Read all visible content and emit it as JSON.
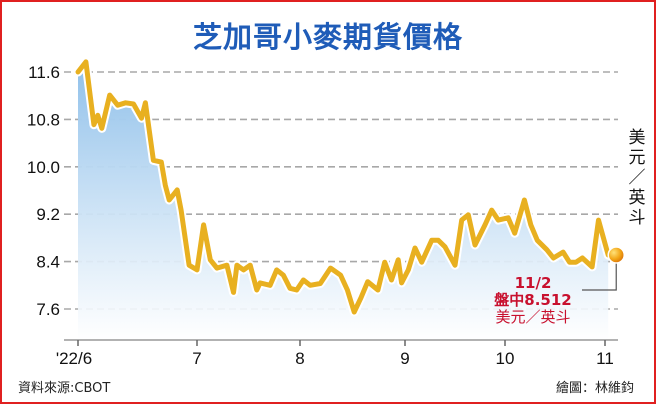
{
  "chart_data": {
    "type": "area",
    "title": "芝加哥小麥期貨價格",
    "ylabel": "美元／英斗",
    "xlabel": "",
    "ylim": [
      7.35,
      11.85
    ],
    "yticks": [
      "11.6",
      "10.8",
      "10.0",
      "9.2",
      "8.4",
      "7.6"
    ],
    "ytick_values": [
      11.6,
      10.8,
      10.0,
      9.2,
      8.4,
      7.6
    ],
    "xticks": [
      "'22/6",
      "7",
      "8",
      "9",
      "10",
      "11"
    ],
    "xtick_dates": [
      "2022-06-01",
      "2022-07-01",
      "2022-08-01",
      "2022-09-01",
      "2022-10-01",
      "2022-11-01"
    ],
    "grid": true,
    "line_color": "#e8b020",
    "fill_color": "#8fc0ea",
    "series": [
      {
        "x": [
          "2022-06-01",
          "2022-06-03",
          "2022-06-05",
          "2022-06-06",
          "2022-06-07",
          "2022-06-09",
          "2022-06-11",
          "2022-06-13",
          "2022-06-15",
          "2022-06-17",
          "2022-06-18",
          "2022-06-20",
          "2022-06-22",
          "2022-06-23",
          "2022-06-24",
          "2022-06-26",
          "2022-06-27",
          "2022-06-29",
          "2022-07-01",
          "2022-07-03",
          "2022-07-05",
          "2022-07-07",
          "2022-07-10",
          "2022-07-12",
          "2022-07-13",
          "2022-07-15",
          "2022-07-17",
          "2022-07-19",
          "2022-07-20",
          "2022-07-23",
          "2022-07-25",
          "2022-07-27",
          "2022-07-29",
          "2022-07-31",
          "2022-08-02",
          "2022-08-04",
          "2022-08-07",
          "2022-08-10",
          "2022-08-13",
          "2022-08-15",
          "2022-08-17",
          "2022-08-19",
          "2022-08-21",
          "2022-08-24",
          "2022-08-26",
          "2022-08-28",
          "2022-08-30",
          "2022-08-31",
          "2022-09-02",
          "2022-09-04",
          "2022-09-06",
          "2022-09-09",
          "2022-09-11",
          "2022-09-13",
          "2022-09-16",
          "2022-09-18",
          "2022-09-20",
          "2022-09-22",
          "2022-09-25",
          "2022-09-27",
          "2022-09-29",
          "2022-10-02",
          "2022-10-04",
          "2022-10-07",
          "2022-10-09",
          "2022-10-11",
          "2022-10-14",
          "2022-10-16",
          "2022-10-19",
          "2022-10-21",
          "2022-10-23",
          "2022-10-25",
          "2022-10-28",
          "2022-10-30",
          "2022-11-02"
        ],
        "y": [
          11.6,
          11.77,
          10.71,
          10.87,
          10.65,
          11.21,
          11.04,
          11.08,
          11.06,
          10.82,
          11.08,
          10.11,
          10.08,
          9.69,
          9.44,
          9.61,
          9.27,
          8.34,
          8.26,
          9.02,
          8.43,
          8.29,
          8.34,
          7.88,
          8.34,
          8.26,
          8.34,
          7.92,
          8.04,
          8.0,
          8.26,
          8.17,
          7.95,
          7.92,
          8.09,
          8.0,
          8.03,
          8.29,
          8.17,
          7.92,
          7.55,
          7.79,
          8.06,
          7.92,
          8.39,
          8.09,
          8.43,
          8.04,
          8.26,
          8.63,
          8.39,
          8.76,
          8.76,
          8.65,
          8.34,
          9.1,
          9.19,
          8.68,
          9.02,
          9.27,
          9.1,
          9.14,
          8.88,
          9.44,
          9.02,
          8.76,
          8.6,
          8.46,
          8.56,
          8.39,
          8.39,
          8.46,
          8.31,
          9.1,
          8.512
        ]
      }
    ],
    "annotation": {
      "date": "11/2",
      "text": "盤中8.512",
      "unit": "美元／英斗",
      "color": "#c8102e"
    }
  },
  "footer": {
    "source": "資料來源:CBOT",
    "credit": "繪圖：林維鈞"
  }
}
